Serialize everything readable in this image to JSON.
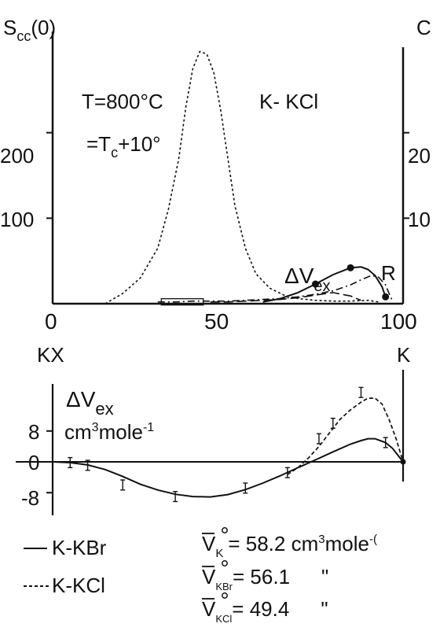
{
  "chart_data": [
    {
      "type": "line",
      "title": "K- KCl",
      "ylabel_left": "S",
      "ylabel_left_sub": "cc",
      "ylabel_left_suffix": "(0)",
      "ylabel_right": "C",
      "xlim": [
        0,
        100
      ],
      "ylim": [
        0,
        300
      ],
      "x_ticks": [
        "0",
        "50",
        "100"
      ],
      "y_ticks_left": [
        "100",
        "200"
      ],
      "y_ticks_right": [
        "10",
        "20"
      ],
      "x_end_left": "KX",
      "x_end_right": "K",
      "annotations": {
        "temp_line1": "T=800°C",
        "temp_line2_a": "=T",
        "temp_line2_sub": "c",
        "temp_line2_b": "+10°",
        "dv_main": "ΔV",
        "dv_sub": "ex",
        "r_label": "R"
      },
      "series": [
        {
          "style": "dotted",
          "x": [
            15,
            20,
            25,
            30,
            33,
            36,
            38,
            40,
            42,
            44,
            46,
            48,
            50,
            52,
            55,
            58,
            62,
            66,
            70,
            75,
            80,
            85,
            90,
            93
          ],
          "y": [
            0,
            12,
            30,
            65,
            110,
            170,
            230,
            275,
            295,
            292,
            270,
            225,
            170,
            115,
            65,
            35,
            18,
            10,
            6,
            4,
            3,
            3,
            4,
            2
          ]
        },
        {
          "style": "solid-with-points",
          "x": [
            60,
            65,
            70,
            75,
            80,
            85,
            88,
            90,
            92,
            94,
            95
          ],
          "y": [
            2,
            6,
            13,
            23,
            34,
            42,
            43,
            40,
            33,
            20,
            8
          ],
          "markers_x": [
            75,
            85,
            95
          ],
          "markers_y": [
            23,
            42,
            8
          ]
        },
        {
          "style": "dash-dot",
          "x": [
            30,
            35,
            40,
            45,
            50,
            55,
            60,
            65,
            70,
            75,
            80,
            85,
            88,
            91,
            93,
            95,
            96,
            97
          ],
          "y": [
            2,
            2,
            3,
            3,
            3,
            4,
            5,
            6,
            8,
            11,
            15,
            22,
            28,
            33,
            31,
            22,
            12,
            3
          ]
        },
        {
          "style": "long-dash",
          "x": [
            45,
            50,
            55,
            60,
            65,
            70,
            75,
            80,
            85,
            88
          ],
          "y": [
            2,
            2,
            3,
            4,
            5,
            7,
            10,
            13,
            9,
            4
          ]
        }
      ]
    },
    {
      "type": "line",
      "ylabel_line1_main": "ΔV",
      "ylabel_line1_sub": "ex",
      "ylabel_line2_a": "cm",
      "ylabel_line2_sup": "3",
      "ylabel_line2_b": "mole",
      "ylabel_line2_sup2": "-1",
      "xlim": [
        0,
        100
      ],
      "ylim": [
        -12,
        22
      ],
      "y_ticks": [
        "8",
        "0",
        "-8"
      ],
      "series": [
        {
          "name": "K-KBr",
          "style": "solid",
          "x": [
            0,
            5,
            10,
            15,
            20,
            25,
            30,
            35,
            40,
            45,
            50,
            55,
            60,
            65,
            70,
            75,
            80,
            85,
            88,
            90,
            92,
            95,
            97,
            100
          ],
          "y": [
            0,
            -0.2,
            -0.8,
            -2.0,
            -3.8,
            -5.8,
            -7.3,
            -8.4,
            -9.0,
            -9.1,
            -8.5,
            -7.2,
            -5.5,
            -3.6,
            -1.5,
            0.5,
            2.6,
            4.6,
            5.5,
            6.0,
            6.0,
            5.0,
            3.5,
            0
          ]
        },
        {
          "name": "K-KCl",
          "style": "dashed",
          "x": [
            67,
            70,
            73,
            76,
            79,
            82,
            85,
            88,
            90,
            92,
            94,
            96,
            98,
            100
          ],
          "y": [
            -3.3,
            -1.5,
            1.0,
            4.0,
            7.5,
            11.0,
            13.5,
            15.5,
            16.5,
            16.5,
            15.0,
            11.0,
            6.0,
            0
          ]
        }
      ],
      "error_bars": {
        "x": [
          5,
          10,
          20,
          35,
          55,
          67,
          76,
          80,
          88,
          95
        ],
        "y": [
          -0.2,
          -0.9,
          -6.0,
          -9.0,
          -6.8,
          -2.8,
          6.0,
          10.0,
          18.0,
          5.0
        ],
        "half_height": 1.3
      },
      "legend_kbr": "K-KBr",
      "legend_kcl": "K-KCl",
      "volumes": [
        {
          "symbol": "V",
          "sub": "K",
          "value": "= 58.2 cm",
          "sup": "3",
          "unit": "mole",
          "sup2": "-(",
          "note": ""
        },
        {
          "symbol": "V",
          "sub": "KBr",
          "value": "= 56.1",
          "sup": "",
          "unit": "",
          "sup2": "",
          "note": "\""
        },
        {
          "symbol": "V",
          "sub": "KCl",
          "value": "= 49.4",
          "sup": "",
          "unit": "",
          "sup2": "",
          "note": "\""
        }
      ]
    }
  ]
}
